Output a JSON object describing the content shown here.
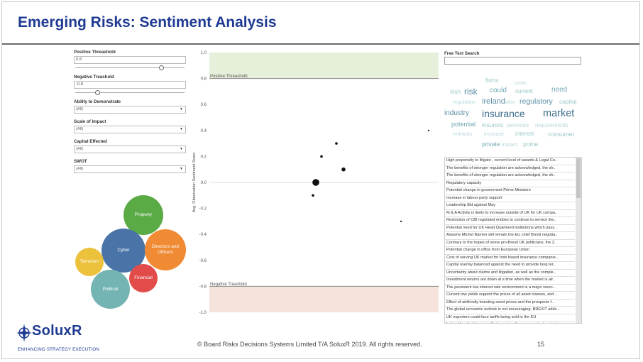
{
  "slide": {
    "title": "Emerging Risks: Sentiment Analysis",
    "copyright": "© Board Risks Decisions Systems Limited T/A SoluxR 2019. All rights reserved.",
    "page_number": "15"
  },
  "logo": {
    "name": "SoluxR",
    "tagline": "ENHANCING STRATEGY EXECUTION"
  },
  "filters": {
    "positive_threshold": {
      "label": "Positive Threashold",
      "value": "0.8",
      "slider_level": 0.8
    },
    "negative_threshold": {
      "label": "Negative Treashold",
      "value": "-0.8",
      "slider_level": 0.2
    },
    "ability": {
      "label": "Ability to Demonstrate",
      "value": "(All)"
    },
    "scale": {
      "label": "Scale of Impact",
      "value": "(All)"
    },
    "capital": {
      "label": "Capital Effected",
      "value": "(All)"
    },
    "swot": {
      "label": "SWOT",
      "value": "(All)"
    }
  },
  "bubbles": [
    {
      "label": "Property",
      "color": "#5aaa46"
    },
    {
      "label": "Cyber",
      "color": "#4a74a8"
    },
    {
      "label": "Directors and Officers",
      "color": "#f08a33"
    },
    {
      "label": "Terrorism",
      "color": "#ecc13c"
    },
    {
      "label": "Financial",
      "color": "#e14c4a"
    },
    {
      "label": "Political",
      "color": "#74b5b3"
    }
  ],
  "chart_data": {
    "type": "scatter",
    "ylabel": "Avg. Observation Sentiment Score",
    "ylim": [
      -1.0,
      1.0
    ],
    "yticks": [
      "1.0",
      "0.8",
      "0.6",
      "0.4",
      "0.2",
      "0.0",
      "-0.2",
      "-0.4",
      "-0.6",
      "-0.8",
      "-1.0"
    ],
    "positive_band_label": "Positive Threashold",
    "negative_band_label": "Negative Treashold",
    "positive_threshold": 0.8,
    "negative_threshold": -0.8,
    "points": [
      {
        "y": 0.4,
        "size": 1
      },
      {
        "y": 0.3,
        "size": 2
      },
      {
        "y": 0.2,
        "size": 2
      },
      {
        "y": 0.1,
        "size": 3
      },
      {
        "y": 0.0,
        "size": 6
      },
      {
        "y": -0.1,
        "size": 2
      },
      {
        "y": -0.3,
        "size": 1
      }
    ]
  },
  "search": {
    "label": "Free Text Search",
    "value": ""
  },
  "word_cloud": [
    {
      "text": "firms",
      "color": "#9bc7c6"
    },
    {
      "text": "costs",
      "color": "#b9d6d9"
    },
    {
      "text": "Irish",
      "color": "#9bc7c6"
    },
    {
      "text": "risk",
      "color": "#5c8fa6"
    },
    {
      "text": "could",
      "color": "#6fa7b3"
    },
    {
      "text": "current",
      "color": "#9bc7c6"
    },
    {
      "text": "need",
      "color": "#6fa7b3"
    },
    {
      "text": "regulation",
      "color": "#b9d6d9"
    },
    {
      "text": "ireland",
      "color": "#5c8fa6"
    },
    {
      "text": "also",
      "color": "#b9d6d9"
    },
    {
      "text": "regulatory",
      "color": "#5c8fa6"
    },
    {
      "text": "capital",
      "color": "#9bc7c6"
    },
    {
      "text": "industry",
      "color": "#5c8fa6"
    },
    {
      "text": "insurance",
      "color": "#3d6e8c"
    },
    {
      "text": "market",
      "color": "#3d6e8c"
    },
    {
      "text": "potential",
      "color": "#6fa7b3"
    },
    {
      "text": "insurers",
      "color": "#9bc7c6"
    },
    {
      "text": "services",
      "color": "#b9d6d9"
    },
    {
      "text": "requirements",
      "color": "#b9d6d9"
    },
    {
      "text": "entrants",
      "color": "#b9d6d9"
    },
    {
      "text": "increase",
      "color": "#b9d6d9"
    },
    {
      "text": "interest",
      "color": "#9bc7c6"
    },
    {
      "text": "consumer",
      "color": "#9bc7c6"
    },
    {
      "text": "private",
      "color": "#6fa7b3"
    },
    {
      "text": "impact",
      "color": "#b9d6d9"
    },
    {
      "text": "prime",
      "color": "#9bc7c6"
    }
  ],
  "observations": [
    "High propensity to litigate , current level of awards & Legal Co..",
    "The benefits of stronger regulation are acknowledged, the sh..",
    "The benefits of stronger regulation are acknowledged, the sh..",
    "Regulatory capacity",
    "Potential change in government Prime Ministers",
    "Increase in labour party support",
    "Leadership Bid against May",
    "M & A Activity is likely to increase outside of UK for UK compa..",
    "Restriction of CBI regulated entities to continue to service the..",
    "Potential need for UK Head Quartered institutions which pass..",
    "Assume Michel Barnier will remain the EU chief Brexit negotia..",
    "Contrary to the hopes of some pro-Brexit UK politicians, the 2..",
    "Potential change in office from European Union",
    "Cost of serving UK market for Irish based insurance companie..",
    "Capital overlay balanced against the need to provide long ter..",
    "Uncertainty about claims and litigation, as well as the comple..",
    "Investment returns are down at a time when the market is alr..",
    "The persistent low interest rate environment is a major sourc..",
    "Current low yields support the prices of all asset classes, and ..",
    "Effect of artificially boosting asset prices and the prospects f..",
    "The global economic outlook is not encouraging. BREXIT adds ..",
    "UK exporters could face tariffs  being sold in the EU",
    "Ireland has lost its main ally in arguing the case against a mini.."
  ]
}
